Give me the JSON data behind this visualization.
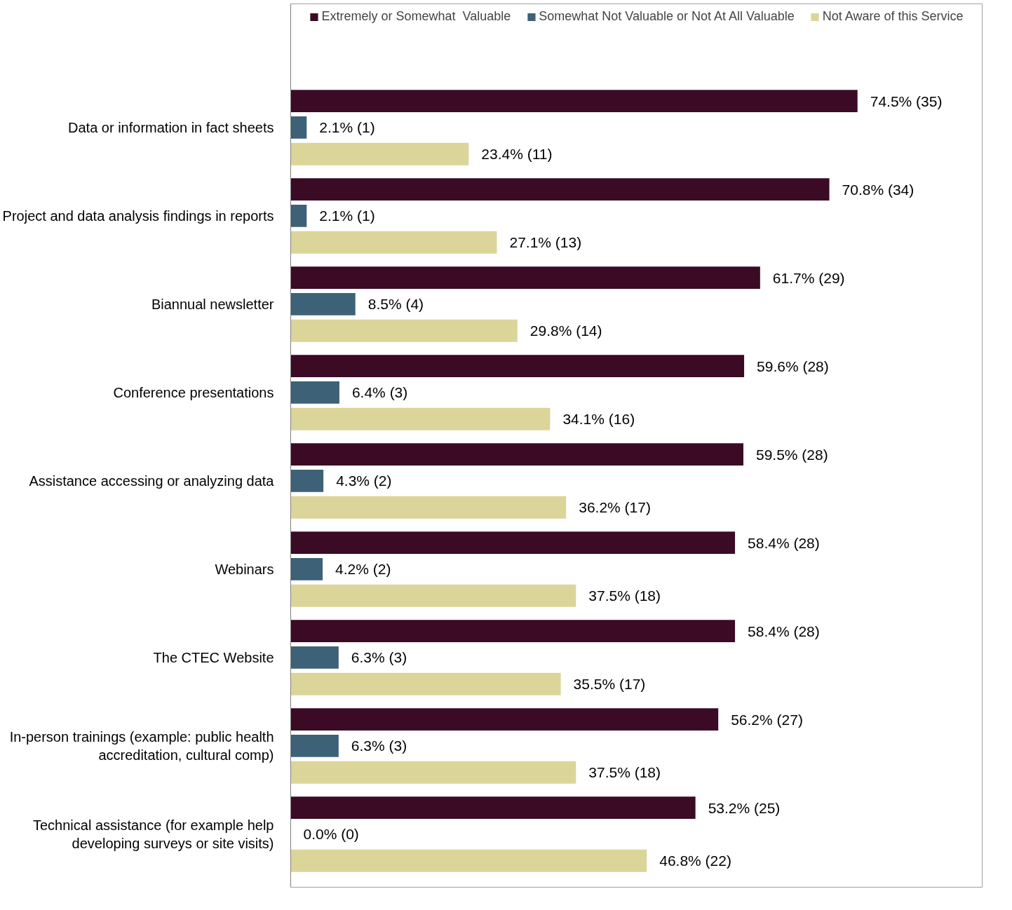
{
  "chart_data": {
    "type": "bar",
    "orientation": "horizontal",
    "legend": "top",
    "grid": false,
    "categories": [
      "Data or information in fact sheets",
      "Project and data analysis findings in reports",
      "Biannual newsletter",
      "Conference presentations",
      "Assistance accessing or analyzing data",
      "Webinars",
      "The CTEC Website",
      "In-person trainings (example: public health accreditation, cultural comp)",
      "Technical assistance (for example help developing surveys or site visits)"
    ],
    "series": [
      {
        "name": "Extremely or Somewhat  Valuable",
        "color": "#3b0a24",
        "values": [
          74.5,
          70.8,
          61.7,
          59.6,
          59.5,
          58.4,
          58.4,
          56.2,
          53.2
        ],
        "value_labels": [
          "74.5% (35)",
          "70.8% (34)",
          "61.7% (29)",
          "59.6% (28)",
          "59.5% (28)",
          "58.4% (28)",
          "58.4% (28)",
          "56.2% (27)",
          "53.2% (25)"
        ]
      },
      {
        "name": "Somewhat Not Valuable or Not At All Valuable",
        "color": "#3d6176",
        "values": [
          2.1,
          2.1,
          8.5,
          6.4,
          4.3,
          4.2,
          6.3,
          6.3,
          0.0
        ],
        "value_labels": [
          "2.1% (1)",
          "2.1% (1)",
          "8.5% (4)",
          "6.4% (3)",
          "4.3% (2)",
          "4.2% (2)",
          "6.3% (3)",
          "6.3% (3)",
          "0.0% (0)"
        ]
      },
      {
        "name": "Not Aware of this Service",
        "color": "#dcd59a",
        "values": [
          23.4,
          27.1,
          29.8,
          34.1,
          36.2,
          37.5,
          35.5,
          37.5,
          46.8
        ],
        "value_labels": [
          "23.4% (11)",
          "27.1% (13)",
          "29.8% (14)",
          "34.1% (16)",
          "36.2% (17)",
          "37.5% (18)",
          "35.5% (17)",
          "37.5% (18)",
          "46.8% (22)"
        ]
      }
    ]
  }
}
